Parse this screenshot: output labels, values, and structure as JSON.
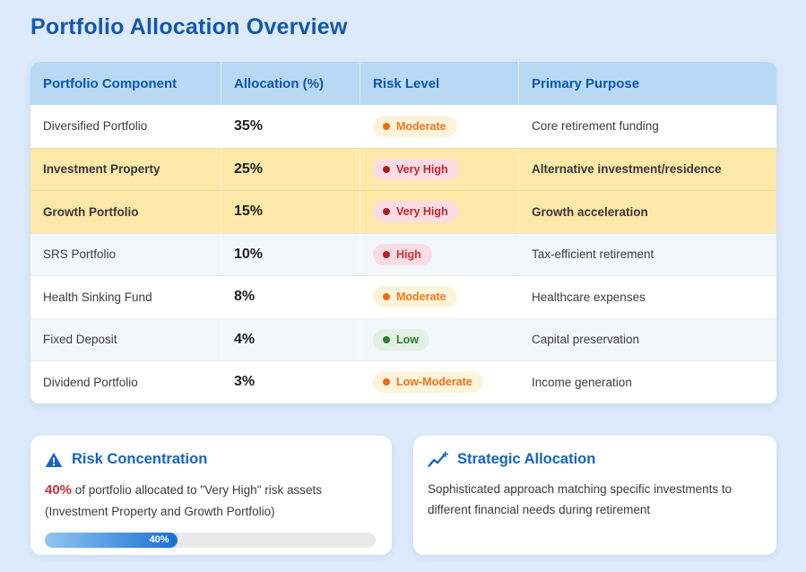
{
  "page": {
    "title": "Portfolio Allocation Overview"
  },
  "table": {
    "columns": [
      "Portfolio Component",
      "Allocation (%)",
      "Risk Level",
      "Primary Purpose"
    ],
    "rows": [
      {
        "component": "Diversified Portfolio",
        "allocation": "35%",
        "risk": "Moderate",
        "risk_style": "moderate",
        "purpose": "Core retirement funding",
        "highlight": false,
        "alt": false
      },
      {
        "component": "Investment Property",
        "allocation": "25%",
        "risk": "Very High",
        "risk_style": "very-high",
        "purpose": "Alternative investment/residence",
        "highlight": true,
        "alt": false
      },
      {
        "component": "Growth Portfolio",
        "allocation": "15%",
        "risk": "Very High",
        "risk_style": "very-high",
        "purpose": "Growth acceleration",
        "highlight": true,
        "alt": false
      },
      {
        "component": "SRS Portfolio",
        "allocation": "10%",
        "risk": "High",
        "risk_style": "high",
        "purpose": "Tax-efficient retirement",
        "highlight": false,
        "alt": true
      },
      {
        "component": "Health Sinking Fund",
        "allocation": "8%",
        "risk": "Moderate",
        "risk_style": "moderate",
        "purpose": "Healthcare expenses",
        "highlight": false,
        "alt": false
      },
      {
        "component": "Fixed Deposit",
        "allocation": "4%",
        "risk": "Low",
        "risk_style": "low",
        "purpose": "Capital preservation",
        "highlight": false,
        "alt": true
      },
      {
        "component": "Dividend Portfolio",
        "allocation": "3%",
        "risk": "Low-Moderate",
        "risk_style": "low-moderate",
        "purpose": "Income generation",
        "highlight": false,
        "alt": false
      }
    ]
  },
  "cards": {
    "risk_concentration": {
      "title": "Risk Concentration",
      "icon": "warning-triangle-icon",
      "highlight_value": "40%",
      "text": " of portfolio allocated to \"Very High\" risk assets (Investment Property and Growth Portfolio)",
      "progress_percent": 40,
      "progress_label": "40%"
    },
    "strategic_allocation": {
      "title": "Strategic Allocation",
      "icon": "trending-sparkle-icon",
      "text": "Sophisticated approach matching specific investments to different financial needs during retirement"
    }
  },
  "colors": {
    "page_background": "#dceafb",
    "title_blue": "#1457a8",
    "table_header_bg": "#b7d9f3",
    "table_header_text": "#0e57a8",
    "highlight_row_yellow": "#fce8a8",
    "alt_row_blue": "#f2f7fc",
    "card_title_blue": "#1563c5",
    "risk_red": "#d32f2f",
    "badge_moderate_orange": "#f0791c",
    "badge_very_high_red": "#c02430",
    "badge_low_green": "#2e7d32",
    "progress_fill_blue": "#1b6fd3",
    "progress_track_gray": "#e9e9ea"
  }
}
